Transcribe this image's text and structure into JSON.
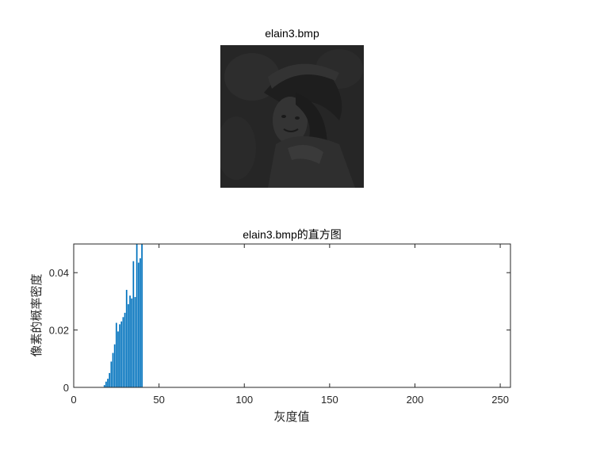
{
  "image_panel": {
    "title": "elain3.bmp",
    "tone": "#262626"
  },
  "chart_data": {
    "type": "bar",
    "title": "elain3.bmp的直方图",
    "xlabel": "灰度值",
    "ylabel": "像素的概率密度",
    "xlim": [
      0,
      256
    ],
    "ylim": [
      0,
      0.05
    ],
    "xticks": [
      0,
      50,
      100,
      150,
      200,
      250
    ],
    "yticks": [
      0,
      0.02,
      0.04
    ],
    "ytick_labels": [
      "0",
      "0.02",
      "0.04"
    ],
    "bar_color": "#0072BD",
    "grid": false,
    "x": [
      18,
      19,
      20,
      21,
      22,
      23,
      24,
      25,
      26,
      27,
      28,
      29,
      30,
      31,
      32,
      33,
      34,
      35,
      36,
      37,
      38,
      39,
      40
    ],
    "values": [
      0.0008,
      0.002,
      0.003,
      0.005,
      0.009,
      0.012,
      0.015,
      0.0225,
      0.0195,
      0.022,
      0.023,
      0.0245,
      0.026,
      0.034,
      0.029,
      0.032,
      0.031,
      0.044,
      0.0315,
      0.05,
      0.0435,
      0.045,
      0.05
    ]
  }
}
